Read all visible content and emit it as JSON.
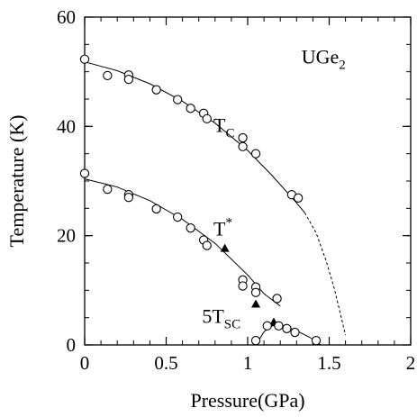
{
  "chart_data": {
    "type": "scatter",
    "xlabel": "Pressure(GPa)",
    "ylabel": "Temperature (K)",
    "xlim": [
      0,
      2
    ],
    "ylim": [
      0,
      60
    ],
    "xticks": [
      0,
      0.5,
      1,
      1.5,
      2
    ],
    "xtick_labels": [
      "0",
      "0.5",
      "1",
      "1.5",
      "2"
    ],
    "yticks": [
      0,
      20,
      40,
      60
    ],
    "ytick_labels": [
      "0",
      "20",
      "40",
      "60"
    ],
    "grid": false,
    "annotations": [
      {
        "id": "compound",
        "base": "UGe",
        "sub": "2",
        "sup": "",
        "x": 1.33,
        "y": 51.5
      },
      {
        "id": "tc",
        "base": "T",
        "sub": "C",
        "sup": "",
        "x": 0.79,
        "y": 39.0
      },
      {
        "id": "tstar",
        "base": "T",
        "sub": "",
        "sup": "*",
        "x": 0.79,
        "y": 20.0
      },
      {
        "id": "tsc",
        "base": "5T",
        "sub": "SC",
        "sup": "",
        "x": 0.72,
        "y": 4.0
      }
    ],
    "series": [
      {
        "marker": "circle",
        "points": [
          [
            0,
            52.3
          ],
          [
            0.14,
            49.3
          ],
          [
            0.27,
            49.4
          ],
          [
            0.27,
            48.6
          ],
          [
            0.44,
            46.7
          ],
          [
            0.57,
            44.9
          ],
          [
            0.65,
            43.3
          ],
          [
            0.73,
            42.4
          ],
          [
            0.75,
            41.4
          ],
          [
            0.97,
            37.9
          ],
          [
            0.97,
            36.3
          ],
          [
            1.05,
            35.0
          ],
          [
            1.27,
            27.5
          ],
          [
            1.31,
            26.9
          ]
        ]
      },
      {
        "marker": "circle",
        "points": [
          [
            0,
            31.4
          ],
          [
            0.14,
            28.5
          ],
          [
            0.27,
            27.5
          ],
          [
            0.27,
            27.0
          ],
          [
            0.44,
            24.9
          ],
          [
            0.57,
            23.4
          ],
          [
            0.65,
            21.4
          ],
          [
            0.73,
            19.2
          ],
          [
            0.75,
            18.2
          ],
          [
            0.97,
            11.9
          ],
          [
            0.97,
            10.8
          ],
          [
            1.05,
            10.6
          ],
          [
            1.05,
            9.6
          ],
          [
            1.18,
            8.5
          ]
        ]
      },
      {
        "marker": "triangle",
        "points": [
          [
            0.86,
            17.7
          ],
          [
            1.05,
            7.5
          ],
          [
            1.16,
            4.2
          ]
        ]
      },
      {
        "marker": "circle",
        "points": [
          [
            1.05,
            0.8
          ],
          [
            1.12,
            3.5
          ],
          [
            1.19,
            3.5
          ],
          [
            1.24,
            3.0
          ],
          [
            1.29,
            2.3
          ],
          [
            1.42,
            0.8
          ]
        ]
      }
    ],
    "fit_lines": [
      {
        "style": "solid",
        "points": [
          [
            0,
            51.8
          ],
          [
            0.2,
            50.2
          ],
          [
            0.4,
            47.8
          ],
          [
            0.6,
            44.6
          ],
          [
            0.8,
            40.6
          ],
          [
            1.0,
            35.6
          ],
          [
            1.15,
            31.0
          ],
          [
            1.3,
            26.0
          ],
          [
            1.35,
            24.2
          ]
        ]
      },
      {
        "style": "dashed",
        "points": [
          [
            1.35,
            24.2
          ],
          [
            1.42,
            20.5
          ],
          [
            1.48,
            15.5
          ],
          [
            1.53,
            10.5
          ],
          [
            1.57,
            5.5
          ],
          [
            1.6,
            1.8
          ]
        ]
      },
      {
        "style": "solid",
        "points": [
          [
            0,
            30.4
          ],
          [
            0.2,
            28.9
          ],
          [
            0.4,
            26.4
          ],
          [
            0.6,
            23.0
          ],
          [
            0.8,
            18.6
          ],
          [
            1.0,
            12.8
          ],
          [
            1.1,
            9.4
          ],
          [
            1.2,
            7.1
          ]
        ]
      },
      {
        "style": "solid",
        "points": [
          [
            1.05,
            0.0
          ],
          [
            1.1,
            2.4
          ],
          [
            1.15,
            3.5
          ],
          [
            1.22,
            3.5
          ],
          [
            1.3,
            2.6
          ],
          [
            1.38,
            1.4
          ],
          [
            1.45,
            0.0
          ]
        ]
      }
    ]
  }
}
